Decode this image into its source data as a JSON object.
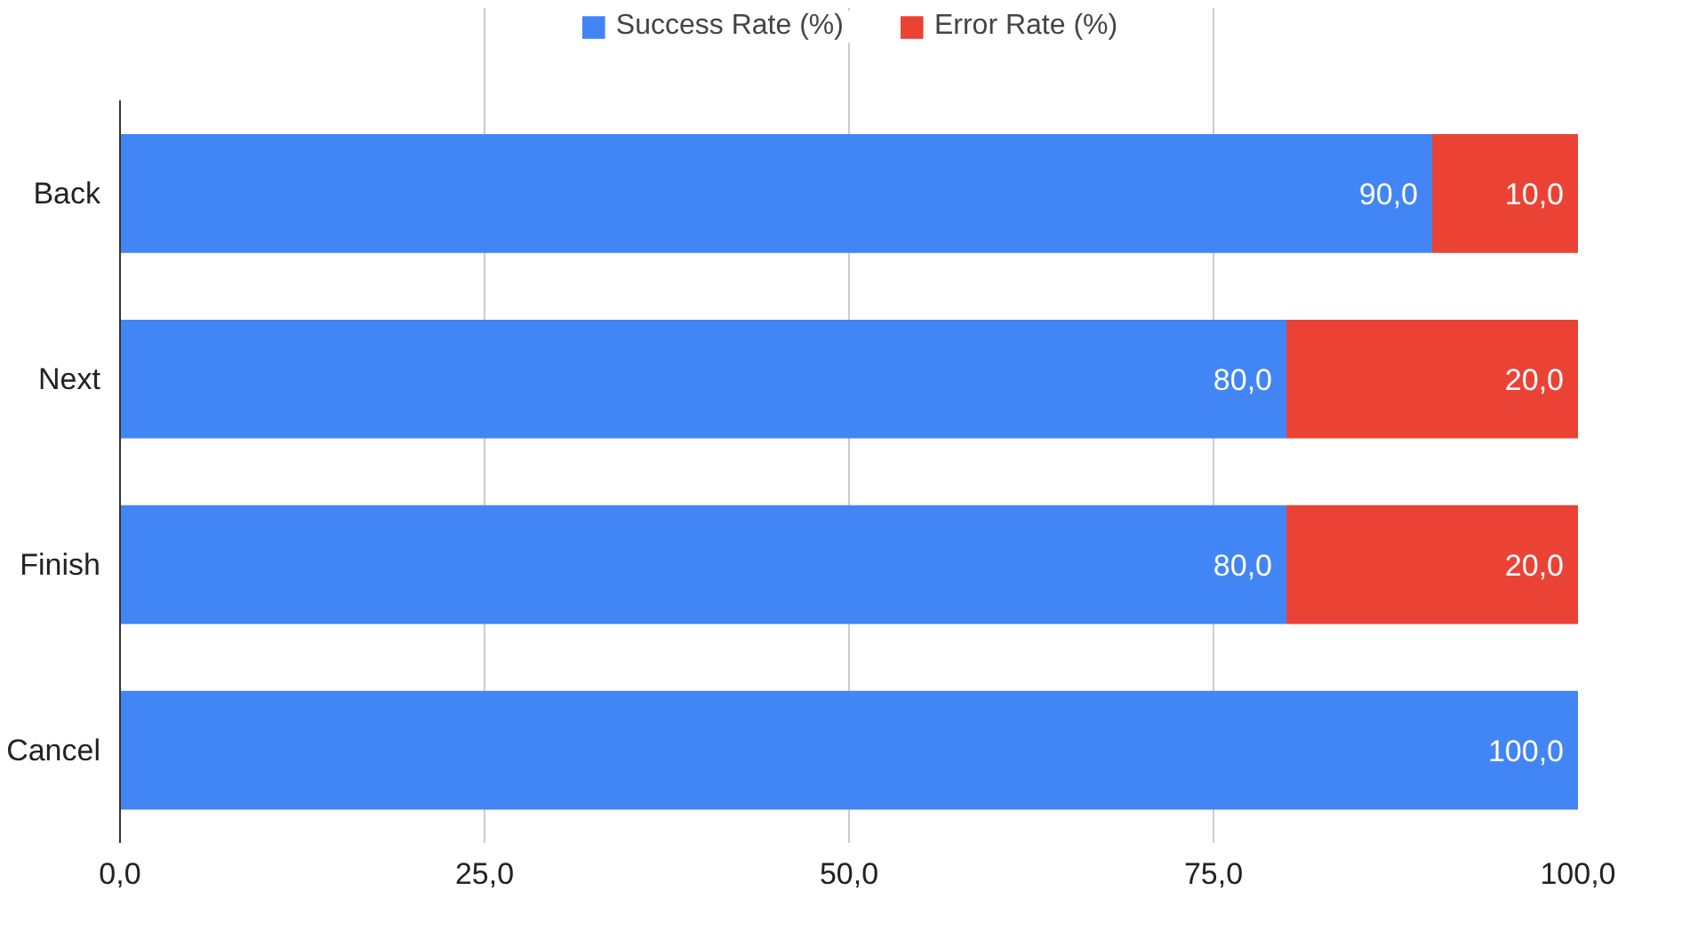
{
  "chart_data": {
    "type": "bar",
    "orientation": "horizontal",
    "stacked": true,
    "categories": [
      "Back",
      "Next",
      "Finish",
      "Cancel"
    ],
    "series": [
      {
        "name": "Success Rate (%)",
        "color": "#4285f4",
        "values": [
          90,
          80,
          80,
          100
        ],
        "value_labels": [
          "90,0",
          "80,0",
          "80,0",
          "100,0"
        ]
      },
      {
        "name": "Error Rate (%)",
        "color": "#ea4335",
        "values": [
          10,
          20,
          20,
          0
        ],
        "value_labels": [
          "10,0",
          "20,0",
          "20,0",
          null
        ]
      }
    ],
    "xlim": [
      0,
      100
    ],
    "xticks": [
      {
        "value": 0,
        "label": "0,0"
      },
      {
        "value": 25,
        "label": "25,0"
      },
      {
        "value": 50,
        "label": "50,0"
      },
      {
        "value": 75,
        "label": "75,0"
      },
      {
        "value": 100,
        "label": "100,0"
      }
    ],
    "grid": "x",
    "legend": "top"
  }
}
